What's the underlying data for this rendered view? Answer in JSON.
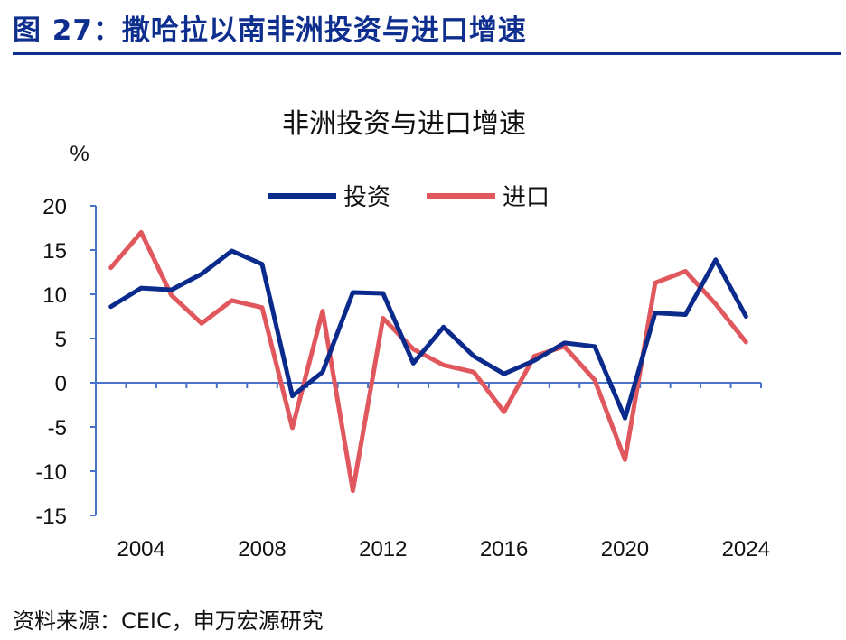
{
  "figure": {
    "title": "图 27：撒哈拉以南非洲投资与进口增速",
    "source": "资料来源：CEIC，申万宏源研究"
  },
  "colors": {
    "brand": "#0f2f8f",
    "investment": "#0a2a8c",
    "imports": "#e0585d",
    "axis": "#4a72c8"
  },
  "chart_data": {
    "type": "line",
    "title": "非洲投资与进口增速",
    "ylabel": "%",
    "xlabel": "",
    "ylim": [
      -15,
      20
    ],
    "yticks": [
      "20",
      "15",
      "10",
      "5",
      "0",
      "-5",
      "-10",
      "-15"
    ],
    "xticks": [
      "2004",
      "2008",
      "2012",
      "2016",
      "2020",
      "2024"
    ],
    "legend_position": "top-center",
    "grid": false,
    "x": [
      2003,
      2004,
      2005,
      2006,
      2007,
      2008,
      2009,
      2010,
      2011,
      2012,
      2013,
      2014,
      2015,
      2016,
      2017,
      2018,
      2019,
      2020,
      2021,
      2022,
      2023,
      2024
    ],
    "series": [
      {
        "name": "投资",
        "values": [
          8.6,
          10.7,
          10.5,
          12.3,
          14.9,
          13.4,
          -1.5,
          1.2,
          10.2,
          10.1,
          2.2,
          6.3,
          3.0,
          1.0,
          2.5,
          4.5,
          4.1,
          -4.0,
          7.9,
          7.7,
          13.9,
          7.5
        ]
      },
      {
        "name": "进口",
        "values": [
          13.0,
          17.0,
          9.9,
          6.7,
          9.3,
          8.5,
          -5.1,
          8.1,
          -12.2,
          7.3,
          3.8,
          2.0,
          1.2,
          -3.3,
          3.0,
          4.1,
          0.3,
          -8.7,
          11.3,
          12.6,
          8.9,
          4.6
        ]
      }
    ]
  }
}
